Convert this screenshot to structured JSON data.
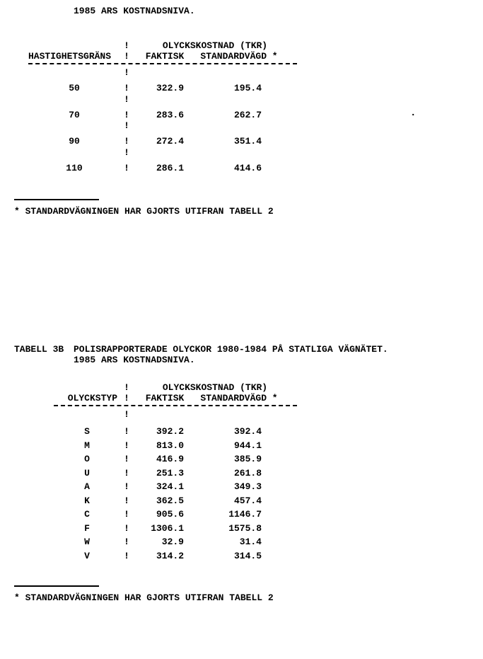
{
  "top_subtitle": "1985 ARS KOSTNADSNIVA.",
  "table1": {
    "group_header": "OLYCKSKOSTNAD (TKR)",
    "row_header": "HASTIGHETSGRÄNS",
    "col_faktisk": "FAKTISK",
    "col_std": "STANDARDVÄGD *",
    "rows": [
      {
        "k": "50",
        "f": "322.9",
        "s": "195.4"
      },
      {
        "k": "70",
        "f": "283.6",
        "s": "262.7"
      },
      {
        "k": "90",
        "f": "272.4",
        "s": "351.4"
      },
      {
        "k": "110",
        "f": "286.1",
        "s": "414.6"
      }
    ]
  },
  "footnote": "* STANDARDVÄGNINGEN HAR GJORTS UTIFRAN TABELL 2",
  "tabell3b": {
    "label": "TABELL 3B",
    "caption_line1": "POLISRAPPORTERADE OLYCKOR 1980-1984 PÅ STATLIGA VÄGNÄTET.",
    "caption_line2": "1985 ARS KOSTNADSNIVA."
  },
  "table2": {
    "group_header": "OLYCKSKOSTNAD (TKR)",
    "row_header": "OLYCKSTYP",
    "col_faktisk": "FAKTISK",
    "col_std": "STANDARDVÄGD *",
    "rows": [
      {
        "k": "S",
        "f": "392.2",
        "s": "392.4"
      },
      {
        "k": "M",
        "f": "813.0",
        "s": "944.1"
      },
      {
        "k": "O",
        "f": "416.9",
        "s": "385.9"
      },
      {
        "k": "U",
        "f": "251.3",
        "s": "261.8"
      },
      {
        "k": "A",
        "f": "324.1",
        "s": "349.3"
      },
      {
        "k": "K",
        "f": "362.5",
        "s": "457.4"
      },
      {
        "k": "C",
        "f": "905.6",
        "s": "1146.7"
      },
      {
        "k": "F",
        "f": "1306.1",
        "s": "1575.8"
      },
      {
        "k": "W",
        "f": "32.9",
        "s": "31.4"
      },
      {
        "k": "V",
        "f": "314.2",
        "s": "314.5"
      }
    ]
  },
  "sep_char": "!"
}
